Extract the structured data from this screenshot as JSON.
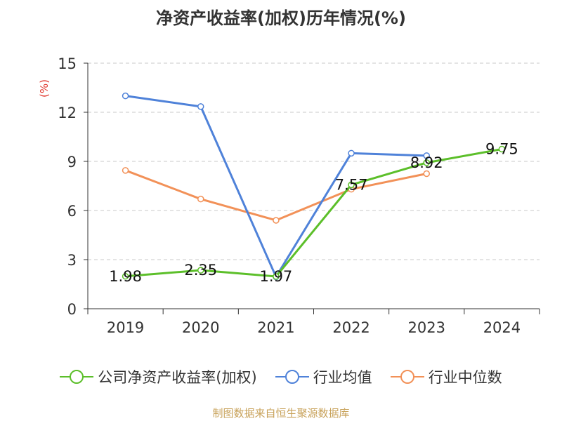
{
  "chart_data": {
    "type": "line",
    "title": "净资产收益率(加权)历年情况(%)",
    "ylabel": "(%)",
    "xlabel": "",
    "ylim": [
      0,
      15
    ],
    "yticks": [
      "0",
      "3",
      "6",
      "9",
      "12",
      "15"
    ],
    "categories": [
      "2019",
      "2020",
      "2021",
      "2022",
      "2023",
      "2024"
    ],
    "grid": true,
    "legend_position": "bottom",
    "series": [
      {
        "name": "公司净资产收益率(加权)",
        "color": "#5cbf2a",
        "values": [
          1.98,
          2.35,
          1.97,
          7.57,
          8.92,
          9.75
        ],
        "labels": [
          "1.98",
          "2.35",
          "1.97",
          "7.57",
          "8.92",
          "9.75"
        ]
      },
      {
        "name": "行业均值",
        "color": "#4f82d9",
        "values": [
          13.0,
          12.35,
          1.95,
          9.5,
          9.35,
          null
        ],
        "labels": []
      },
      {
        "name": "行业中位数",
        "color": "#f29158",
        "values": [
          8.45,
          6.7,
          5.4,
          7.3,
          8.25,
          null
        ],
        "labels": []
      }
    ],
    "source": "制图数据来自恒生聚源数据库"
  }
}
